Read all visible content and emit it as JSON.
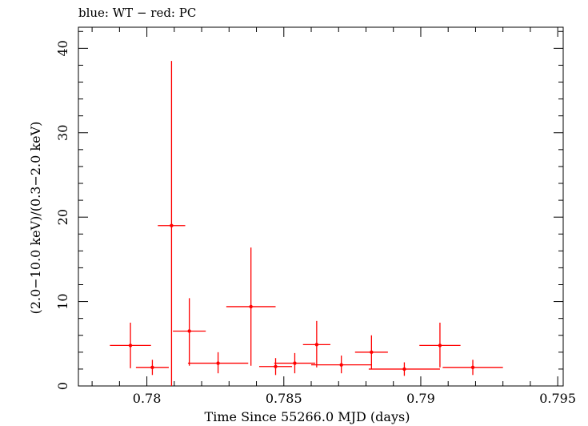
{
  "chart_data": {
    "type": "scatter",
    "title": "blue: WT − red: PC",
    "xlabel": "Time Since 55266.0 MJD (days)",
    "ylabel": "(2.0−10.0 keV)/(0.3−2.0 keV)",
    "xlim": [
      0.7775,
      0.7952
    ],
    "ylim": [
      0,
      42.5
    ],
    "x_ticks": [
      0.78,
      0.785,
      0.79,
      0.795
    ],
    "x_tick_labels": [
      "0.78",
      "0.785",
      "0.79",
      "0.795"
    ],
    "y_ticks": [
      0,
      10,
      20,
      30,
      40
    ],
    "y_tick_labels": [
      "0",
      "10",
      "20",
      "30",
      "40"
    ],
    "grid": false,
    "series": [
      {
        "color": "#ff0000",
        "points": [
          {
            "x": 0.7794,
            "xerr": 0.00075,
            "y": 4.8,
            "ylo": 2.1,
            "yhi": 7.5
          },
          {
            "x": 0.7802,
            "xerr": 0.0006,
            "y": 2.2,
            "ylo": 1.3,
            "yhi": 3.1
          },
          {
            "x": 0.7809,
            "xerr": 0.0005,
            "y": 19.0,
            "ylo": 0,
            "yhi": 38.5
          },
          {
            "x": 0.78155,
            "xerr": 0.0006,
            "y": 6.5,
            "ylo": 2.4,
            "yhi": 10.4
          },
          {
            "x": 0.7826,
            "xerr": 0.0011,
            "y": 2.7,
            "ylo": 1.5,
            "yhi": 4.0
          },
          {
            "x": 0.7838,
            "xerr": 0.0009,
            "y": 9.4,
            "ylo": 2.4,
            "yhi": 16.4
          },
          {
            "x": 0.7847,
            "xerr": 0.0006,
            "y": 2.3,
            "ylo": 1.3,
            "yhi": 3.3
          },
          {
            "x": 0.7854,
            "xerr": 0.00075,
            "y": 2.7,
            "ylo": 1.5,
            "yhi": 3.9
          },
          {
            "x": 0.7862,
            "xerr": 0.0005,
            "y": 4.9,
            "ylo": 2.2,
            "yhi": 7.7
          },
          {
            "x": 0.7871,
            "xerr": 0.0011,
            "y": 2.5,
            "ylo": 1.5,
            "yhi": 3.6
          },
          {
            "x": 0.7882,
            "xerr": 0.0006,
            "y": 4.0,
            "ylo": 2.0,
            "yhi": 6.0
          },
          {
            "x": 0.7894,
            "xerr": 0.0013,
            "y": 2.0,
            "ylo": 1.2,
            "yhi": 2.8
          },
          {
            "x": 0.7907,
            "xerr": 0.00075,
            "y": 4.8,
            "ylo": 2.2,
            "yhi": 7.5
          },
          {
            "x": 0.7919,
            "xerr": 0.0011,
            "y": 2.2,
            "ylo": 1.3,
            "yhi": 3.1
          }
        ]
      }
    ]
  }
}
